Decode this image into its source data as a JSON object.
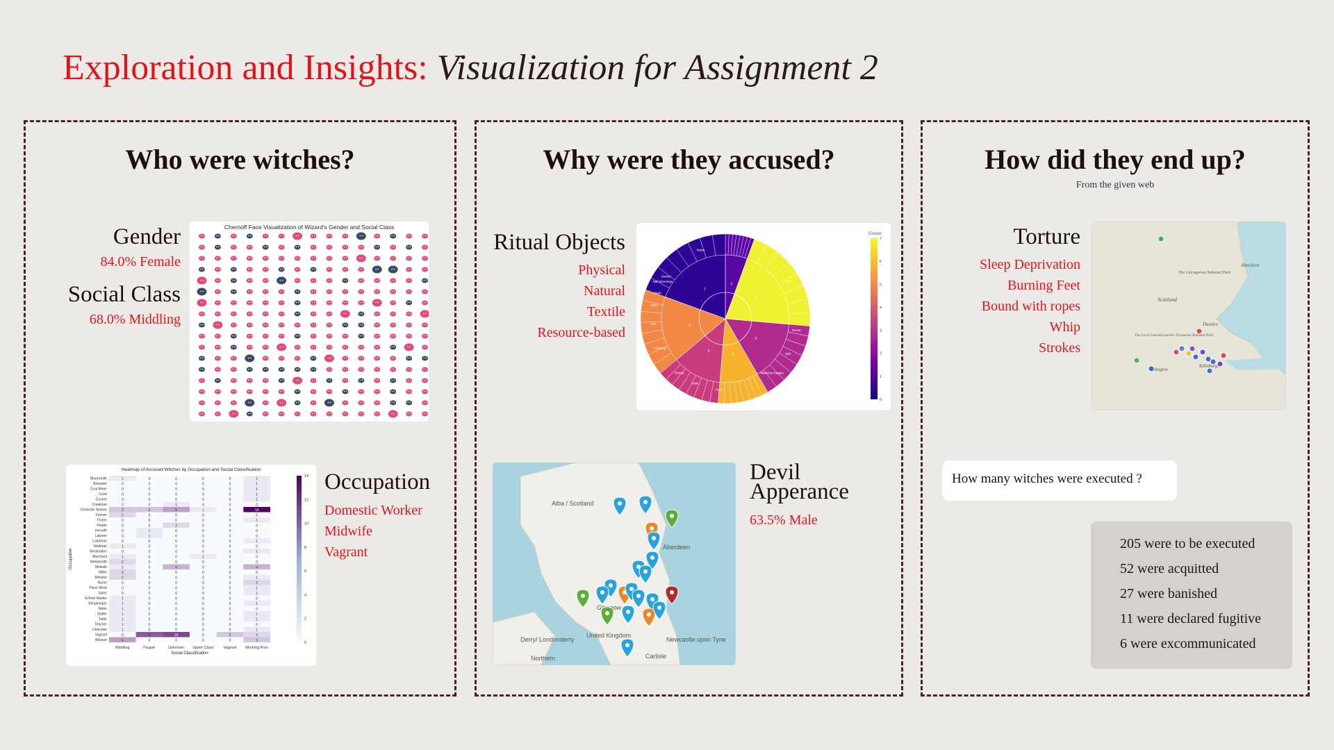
{
  "title": {
    "main": "Exploration and Insights:",
    "sub": "Visualization for Assignment 2"
  },
  "panel1": {
    "heading": "Who were witches?",
    "gender": {
      "label": "Gender",
      "value": "84.0% Female"
    },
    "social": {
      "label": "Social Class",
      "value": "68.0% Middling"
    },
    "occupation": {
      "label": "Occupation",
      "items": [
        "Domestic Worker",
        "Midwife",
        "Vagrant"
      ]
    },
    "chernoff_title": "Chernoff Face Visualization of Wizard's Gender and Social Class",
    "heatmap": {
      "title": "Heatmap of Accused Witches by Occupation and Social Classification",
      "xlabel": "Social Classification",
      "ylabel": "Occupation"
    }
  },
  "panel2": {
    "heading": "Why were they accused?",
    "ritual": {
      "label": "Ritual Objects",
      "items": [
        "Physical",
        "Natural",
        "Textile",
        "Resource-based"
      ]
    },
    "devil": {
      "label_line1": "Devil",
      "label_line2": "Apperance",
      "value": "63.5% Male"
    },
    "sunburst_colorbar_title": "Cluster",
    "map_labels": [
      "Alba / Scotland",
      "Aberdeen",
      "Glasgow",
      "United Kingdom",
      "Derry/ Londonderry",
      "Northern",
      "Carlisle",
      "Newcastle upon Tyne"
    ]
  },
  "panel3": {
    "heading": "How did they end up?",
    "subheading": "From the given web",
    "torture": {
      "label": "Torture",
      "items": [
        "Sleep Deprivation",
        "Burning Feet",
        "Bound with ropes",
        "Whip",
        "Strokes"
      ]
    },
    "map_labels": [
      "Aberdeen",
      "The Cairngorms National Park",
      "Scotland",
      "Dundee",
      "The Loch Lomond and the Trossachs National Park",
      "Edinburgh",
      "Glasgow"
    ],
    "question": "How many witches were executed ?",
    "results": [
      "205 were to be executed",
      "52 were acquitted",
      "27 were banished",
      "11 were declared fugitive",
      "6 were excommunicated"
    ]
  },
  "chart_data": [
    {
      "type": "heatmap",
      "title": "Heatmap of Accused Witches by Occupation and Social Classification",
      "xlabel": "Social Classification",
      "ylabel": "Occupation",
      "x": [
        "Middling",
        "Pauper",
        "Unknown",
        "Upper Class",
        "Vagrant",
        "Working Poor"
      ],
      "y": [
        "Blacksmith",
        "Brewster",
        "Coal Miner",
        "Cook",
        "Courier",
        "Crealman",
        "Domestic Worker",
        "Farmer",
        "Fisher",
        "Healer",
        "Herwife",
        "Laborer",
        "Loadman",
        "Maltman",
        "Mealmaker",
        "Merchant",
        "Metalsmith",
        "Midwife",
        "Miller",
        "Minister",
        "Nurse",
        "Piece Work",
        "Sailor",
        "School Master",
        "Shopkeeper",
        "Skiter",
        "Slatter",
        "Tailor",
        "Teacher",
        "Unknown",
        "Vagrant",
        "Weaver"
      ],
      "values": [
        [
          1,
          0,
          0,
          0,
          0,
          1
        ],
        [
          0,
          0,
          0,
          0,
          0,
          1
        ],
        [
          0,
          0,
          0,
          0,
          0,
          1
        ],
        [
          0,
          0,
          0,
          0,
          0,
          1
        ],
        [
          0,
          0,
          0,
          0,
          0,
          1
        ],
        [
          0,
          0,
          1,
          0,
          0,
          0
        ],
        [
          3,
          3,
          5,
          1,
          0,
          14
        ],
        [
          2,
          0,
          0,
          0,
          0,
          0
        ],
        [
          0,
          0,
          0,
          0,
          0,
          1
        ],
        [
          0,
          0,
          2,
          0,
          0,
          0
        ],
        [
          0,
          1,
          0,
          0,
          0,
          0
        ],
        [
          0,
          1,
          0,
          0,
          0,
          0
        ],
        [
          0,
          0,
          0,
          0,
          0,
          1
        ],
        [
          1,
          0,
          0,
          0,
          0,
          0
        ],
        [
          0,
          0,
          0,
          0,
          0,
          1
        ],
        [
          1,
          0,
          0,
          1,
          0,
          0
        ],
        [
          2,
          0,
          0,
          0,
          0,
          0
        ],
        [
          1,
          0,
          4,
          0,
          0,
          4
        ],
        [
          2,
          0,
          0,
          0,
          0,
          0
        ],
        [
          2,
          0,
          0,
          0,
          0,
          1
        ],
        [
          0,
          0,
          0,
          0,
          0,
          2
        ],
        [
          0,
          0,
          0,
          0,
          0,
          1
        ],
        [
          0,
          0,
          0,
          0,
          0,
          1
        ],
        [
          1,
          0,
          0,
          0,
          0,
          0
        ],
        [
          1,
          0,
          0,
          0,
          0,
          1
        ],
        [
          1,
          0,
          0,
          0,
          0,
          0
        ],
        [
          1,
          0,
          0,
          0,
          0,
          1
        ],
        [
          1,
          0,
          0,
          0,
          0,
          1
        ],
        [
          1,
          0,
          0,
          0,
          0,
          0
        ],
        [
          1,
          0,
          0,
          0,
          0,
          1
        ],
        [
          0,
          9,
          10,
          0,
          3,
          2
        ],
        [
          5,
          0,
          0,
          0,
          0,
          3
        ]
      ],
      "colorbar": [
        0,
        14
      ]
    },
    {
      "type": "pie",
      "subtype": "sunburst",
      "inner_clusters": [
        "0",
        "1",
        "2",
        "3",
        "4",
        "5",
        "6",
        "7"
      ],
      "outer_labels": [
        "Stones",
        "Water",
        "Hair",
        "Bone",
        "Flesh",
        "Nail trimmings",
        "Clothing",
        "Thread",
        "Cloth",
        "Herb",
        "Wax/clay images",
        "Bread",
        "Salt",
        "Fire"
      ],
      "colorbar_title": "Cluster",
      "colorbar": [
        0,
        7
      ]
    }
  ]
}
